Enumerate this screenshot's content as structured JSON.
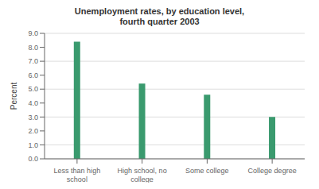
{
  "chart_data": {
    "type": "bar",
    "title": "Unemployment rates, by education level,\nfourth quarter 2003",
    "categories": [
      "Less than high\nschool",
      "High school, no\ncollege",
      "Some college",
      "College degree"
    ],
    "values": [
      8.4,
      5.4,
      4.6,
      3.0
    ],
    "color": "#3a9a6e",
    "ylabel": "Percent",
    "ylim": [
      0,
      9.0
    ],
    "yticks": [
      {
        "value": 0,
        "label": "0.0"
      },
      {
        "value": 1,
        "label": "1.0"
      },
      {
        "value": 2,
        "label": "2.0"
      },
      {
        "value": 3,
        "label": "3.0"
      },
      {
        "value": 4,
        "label": "4.0"
      },
      {
        "value": 5,
        "label": "5.0"
      },
      {
        "value": 6,
        "label": "6.0"
      },
      {
        "value": 7,
        "label": "7.0"
      },
      {
        "value": 8,
        "label": "8.0"
      },
      {
        "value": 9,
        "label": "9.0"
      }
    ],
    "grid": true
  }
}
